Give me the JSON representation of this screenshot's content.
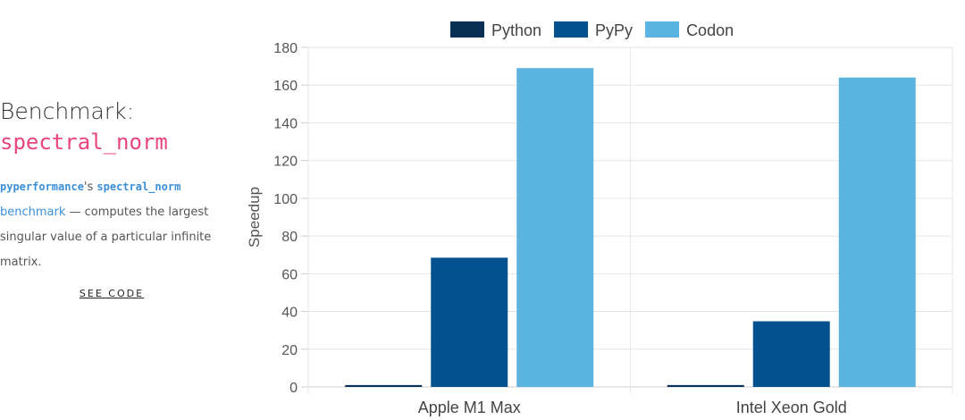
{
  "sidebar": {
    "title": "Benchmark:",
    "name": "spectral_norm",
    "desc_lib": "pyperformance",
    "desc_possessive": "'s ",
    "desc_bench_mono": "spectral_norm",
    "desc_bench_word": "benchmark",
    "desc_rest": " — computes the largest singular value of a particular infinite matrix.",
    "see_code": "SEE CODE"
  },
  "chart_data": {
    "type": "bar",
    "categories": [
      "Apple M1 Max",
      "Intel Xeon Gold"
    ],
    "series": [
      {
        "name": "Python",
        "color": "#0a2f55",
        "values": [
          1,
          1
        ]
      },
      {
        "name": "PyPy",
        "color": "#03528f",
        "values": [
          68.5,
          34.8
        ]
      },
      {
        "name": "Codon",
        "color": "#5ab4df",
        "values": [
          169,
          164
        ]
      }
    ],
    "title": "",
    "xlabel": "",
    "ylabel": "Speedup",
    "ylim": [
      0,
      180
    ],
    "yticks": [
      0,
      20,
      40,
      60,
      80,
      100,
      120,
      140,
      160,
      180
    ],
    "grid": true,
    "legend": "top"
  }
}
